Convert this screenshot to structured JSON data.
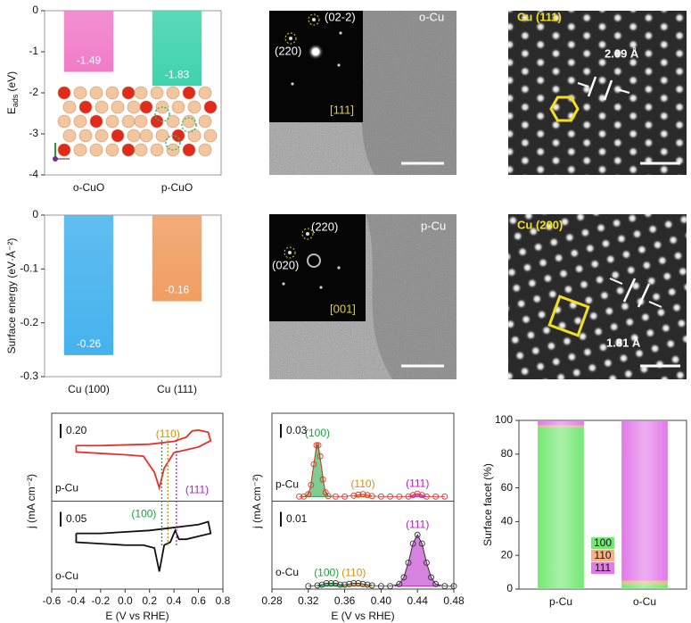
{
  "chart_data": [
    {
      "type": "bar",
      "ylabel": "E",
      "ylabel_sub": "ads",
      "ylabel_unit": "(eV)",
      "categories": [
        "o-CuO",
        "p-CuO"
      ],
      "values": [
        -1.49,
        -1.83
      ],
      "colors": [
        "#f07cc8",
        "#3fd3ad"
      ],
      "ylim": [
        -4,
        0
      ],
      "yticks": [
        0,
        -1,
        -2,
        -3,
        -4
      ]
    },
    {
      "type": "bar",
      "ylabel": "Surface energy (eV·Å⁻²)",
      "categories": [
        "Cu (100)",
        "Cu (111)"
      ],
      "values": [
        -0.26,
        -0.16
      ],
      "colors": [
        "#45b2ee",
        "#f19e62"
      ],
      "ylim": [
        -0.3,
        0
      ],
      "yticks": [
        0,
        -0.1,
        -0.2,
        -0.3
      ]
    },
    {
      "type": "cv",
      "xlabel": "E (V vs RHE)",
      "ylabel": "j (mA cm⁻²)",
      "xlim": [
        -0.6,
        0.8
      ],
      "xticks": [
        -0.6,
        -0.4,
        -0.2,
        {
          "value": 0,
          "label": "0.0"
        },
        0.2,
        0.4,
        0.6,
        0.8
      ],
      "panels": [
        {
          "name": "p-Cu",
          "color": "#e8302a",
          "ylim": [
            -0.85,
            0.4
          ],
          "scale_bar": {
            "value": 0.2,
            "label": "0.20"
          },
          "x": [
            -0.4,
            -0.2,
            0,
            0.2,
            0.4,
            0.5,
            0.55,
            0.6,
            0.68,
            0.7,
            0.6,
            0.5,
            0.4,
            0.32,
            0.28,
            0.24,
            0.15,
            0,
            -0.2,
            -0.4,
            -0.4
          ],
          "values": [
            -0.06,
            -0.06,
            -0.05,
            -0.04,
            0.0,
            0.06,
            0.15,
            0.16,
            0.13,
            0.01,
            -0.08,
            -0.12,
            -0.16,
            -0.38,
            -0.66,
            -0.44,
            -0.21,
            -0.19,
            -0.17,
            -0.15,
            -0.06
          ]
        },
        {
          "name": "o-Cu",
          "color": "#111111",
          "ylim": [
            -0.2,
            0.1
          ],
          "scale_bar": {
            "value": 0.05,
            "label": "0.05"
          },
          "x": [
            -0.4,
            -0.2,
            0,
            0.2,
            0.4,
            0.5,
            0.6,
            0.68,
            0.7,
            0.6,
            0.5,
            0.44,
            0.41,
            0.37,
            0.32,
            0.28,
            0.24,
            0.15,
            0,
            -0.2,
            -0.4,
            -0.4
          ],
          "values": [
            -0.01,
            -0.01,
            -0.005,
            0.0,
            0.01,
            0.015,
            0.02,
            0.03,
            -0.01,
            -0.02,
            -0.03,
            -0.03,
            0.0,
            -0.04,
            -0.05,
            -0.14,
            -0.06,
            -0.05,
            -0.05,
            -0.045,
            -0.04,
            -0.01
          ]
        }
      ],
      "markers": [
        {
          "x": 0.3,
          "label": "(100)",
          "color": "#1aa33a"
        },
        {
          "x": 0.35,
          "label": "(110)",
          "color": "#d4900e"
        },
        {
          "x": 0.42,
          "label": "(111)",
          "color": "#b31ec4"
        }
      ]
    },
    {
      "type": "stripping",
      "xlabel": "E (V vs RHE)",
      "ylabel": "j (mA cm⁻²)",
      "xlim": [
        0.28,
        0.48
      ],
      "xticks": [
        0.28,
        0.32,
        0.36,
        {
          "value": 0.4,
          "label": "0.40"
        },
        0.44,
        0.48
      ],
      "panels": [
        {
          "name": "p-Cu",
          "color": "#e8302a",
          "ylim": [
            -0.01,
            0.18
          ],
          "scale_bar": {
            "value": 0.03,
            "label": "0.03"
          },
          "x": [
            0.31,
            0.315,
            0.32,
            0.323,
            0.326,
            0.329,
            0.331,
            0.333,
            0.336,
            0.339,
            0.342,
            0.35,
            0.36,
            0.37,
            0.375,
            0.38,
            0.385,
            0.39,
            0.4,
            0.41,
            0.42,
            0.43,
            0.435,
            0.44,
            0.445,
            0.45,
            0.46,
            0.47
          ],
          "values": [
            0,
            0,
            0.005,
            0.025,
            0.07,
            0.111,
            0.111,
            0.087,
            0.037,
            0.009,
            0.001,
            0,
            0,
            0.002,
            0.004,
            0.005,
            0.003,
            0.001,
            0,
            0,
            0,
            0,
            0.003,
            0.006,
            0.003,
            0,
            0,
            0
          ],
          "peaks": [
            {
              "label": "(100)",
              "color": "#1aa33a",
              "x": [
                0.314,
                0.318,
                0.322,
                0.326,
                0.33,
                0.334,
                0.338,
                0.342,
                0.346
              ],
              "values": [
                0,
                0.001,
                0.016,
                0.07,
                0.115,
                0.07,
                0.016,
                0.001,
                0
              ]
            },
            {
              "label": "(110)",
              "color": "#d4900e",
              "x": [
                0.37,
                0.375,
                0.38,
                0.385,
                0.39
              ],
              "values": [
                0,
                0.003,
                0.005,
                0.003,
                0
              ]
            },
            {
              "label": "(111)",
              "color": "#b31ec4",
              "x": [
                0.43,
                0.435,
                0.44,
                0.445,
                0.45
              ],
              "values": [
                0,
                0.003,
                0.006,
                0.003,
                0
              ]
            }
          ]
        },
        {
          "name": "o-Cu",
          "color": "#333333",
          "ylim": [
            -0.002,
            0.058
          ],
          "scale_bar": {
            "value": 0.01,
            "label": "0.01"
          },
          "x": [
            0.32,
            0.33,
            0.335,
            0.34,
            0.345,
            0.35,
            0.355,
            0.36,
            0.365,
            0.37,
            0.375,
            0.38,
            0.385,
            0.39,
            0.4,
            0.41,
            0.42,
            0.425,
            0.43,
            0.435,
            0.44,
            0.445,
            0.45,
            0.455,
            0.46,
            0.47,
            0.48
          ],
          "values": [
            0,
            0.0005,
            0.001,
            0.002,
            0.002,
            0.002,
            0.001,
            0.001,
            0.0015,
            0.002,
            0.002,
            0.0015,
            0.001,
            0.0005,
            0,
            0,
            0.0015,
            0.006,
            0.016,
            0.029,
            0.035,
            0.029,
            0.016,
            0.006,
            0.0015,
            0,
            0
          ],
          "peaks": [
            {
              "label": "(100)",
              "color": "#1aa33a",
              "x": [
                0.33,
                0.34,
                0.35,
                0.36
              ],
              "values": [
                0,
                0.002,
                0.002,
                0
              ]
            },
            {
              "label": "(110)",
              "color": "#d4900e",
              "x": [
                0.36,
                0.37,
                0.38,
                0.39
              ],
              "values": [
                0,
                0.002,
                0.0015,
                0
              ]
            },
            {
              "label": "(111)",
              "color": "#b31ec4",
              "x": [
                0.415,
                0.42,
                0.425,
                0.43,
                0.435,
                0.44,
                0.445,
                0.45,
                0.455,
                0.46,
                0.465
              ],
              "values": [
                0.0003,
                0.0015,
                0.006,
                0.016,
                0.029,
                0.035,
                0.029,
                0.016,
                0.006,
                0.0015,
                0.0003
              ]
            }
          ]
        }
      ]
    },
    {
      "type": "stacked-bar",
      "ylabel": "Surface facet (%)",
      "categories": [
        "p-Cu",
        "o-Cu"
      ],
      "ylim": [
        0,
        100
      ],
      "yticks": [
        0,
        20,
        40,
        60,
        80,
        100
      ],
      "legend": "lower-center",
      "series": [
        {
          "name": "100",
          "color": "#74e874",
          "values": [
            96,
            3
          ]
        },
        {
          "name": "110",
          "color": "#f5b183",
          "values": [
            1,
            2
          ]
        },
        {
          "name": "111",
          "color": "#e27ae8",
          "values": [
            3,
            95
          ]
        }
      ]
    }
  ],
  "micrographs": [
    {
      "title": "o-Cu",
      "spots": [
        "(02-2)",
        "(220)"
      ],
      "zone": "[111]"
    },
    {
      "title": "Cu (111)",
      "spacing": "2.09 Å"
    },
    {
      "title": "p-Cu",
      "spots": [
        "(220)",
        "(020)"
      ],
      "zone": "[001]"
    },
    {
      "title": "Cu (200)",
      "spacing": "1.81 Å"
    }
  ]
}
